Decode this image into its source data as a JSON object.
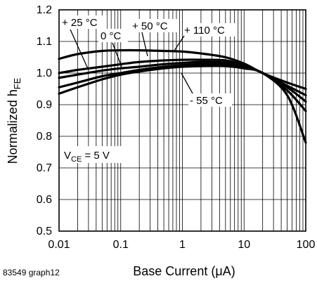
{
  "chart_data": {
    "type": "line",
    "title": "",
    "xlabel": "Base Current (μA)",
    "ylabel_main": "Normalized h",
    "ylabel_sub": "FE",
    "xscale": "log",
    "xlim": [
      0.01,
      100
    ],
    "ylim": [
      0.5,
      1.2
    ],
    "grid": true,
    "x_ticks": [
      0.01,
      0.1,
      1,
      10,
      100
    ],
    "x_tick_labels": [
      "0.01",
      "0.1",
      "1",
      "10",
      "100"
    ],
    "y_ticks": [
      0.5,
      0.6,
      0.7,
      0.8,
      0.9,
      1.0,
      1.1,
      1.2
    ],
    "y_tick_labels": [
      "0.5",
      "0.6",
      "0.7",
      "0.8",
      "0.9",
      "1.0",
      "1.1",
      "1.2"
    ],
    "series": [
      {
        "name": "+ 110 °C",
        "x": [
          0.01,
          0.02,
          0.05,
          0.1,
          0.2,
          0.5,
          1,
          2,
          5,
          10,
          20,
          50,
          100
        ],
        "y": [
          1.045,
          1.06,
          1.07,
          1.072,
          1.072,
          1.07,
          1.068,
          1.062,
          1.05,
          1.03,
          1.0,
          0.97,
          0.95
        ]
      },
      {
        "name": "+ 50 °C",
        "x": [
          0.01,
          0.02,
          0.05,
          0.1,
          0.2,
          0.5,
          1,
          2,
          5,
          10,
          20,
          50,
          100
        ],
        "y": [
          1.0,
          1.01,
          1.02,
          1.028,
          1.035,
          1.04,
          1.042,
          1.042,
          1.04,
          1.025,
          1.0,
          0.96,
          0.93
        ]
      },
      {
        "name": "+ 25 °C",
        "x": [
          0.01,
          0.02,
          0.05,
          0.1,
          0.2,
          0.5,
          1,
          2,
          5,
          10,
          20,
          50,
          100
        ],
        "y": [
          0.985,
          0.995,
          1.008,
          1.015,
          1.02,
          1.028,
          1.032,
          1.035,
          1.033,
          1.022,
          1.0,
          0.955,
          0.91
        ]
      },
      {
        "name": "0 °C",
        "x": [
          0.01,
          0.02,
          0.05,
          0.1,
          0.2,
          0.5,
          1,
          2,
          5,
          10,
          20,
          50,
          100
        ],
        "y": [
          0.955,
          0.97,
          0.99,
          1.0,
          1.01,
          1.02,
          1.025,
          1.028,
          1.028,
          1.02,
          1.0,
          0.945,
          0.88
        ]
      },
      {
        "name": "- 55 °C",
        "x": [
          0.01,
          0.02,
          0.05,
          0.1,
          0.2,
          0.5,
          1,
          2,
          5,
          10,
          20,
          50,
          100
        ],
        "y": [
          0.935,
          0.955,
          0.98,
          0.995,
          1.005,
          1.015,
          1.02,
          1.022,
          1.022,
          1.015,
          1.0,
          0.93,
          0.78
        ]
      }
    ],
    "annotations": {
      "t25": "+ 25 °C",
      "t0": "0 °C",
      "t50": "+ 50 °C",
      "t110": "+ 110 °C",
      "tm55": "- 55 °C",
      "vce_main": "V",
      "vce_sub": "CE",
      "vce_rest": " = 5 V"
    }
  },
  "footer": {
    "graph_id": "83549 graph12"
  }
}
